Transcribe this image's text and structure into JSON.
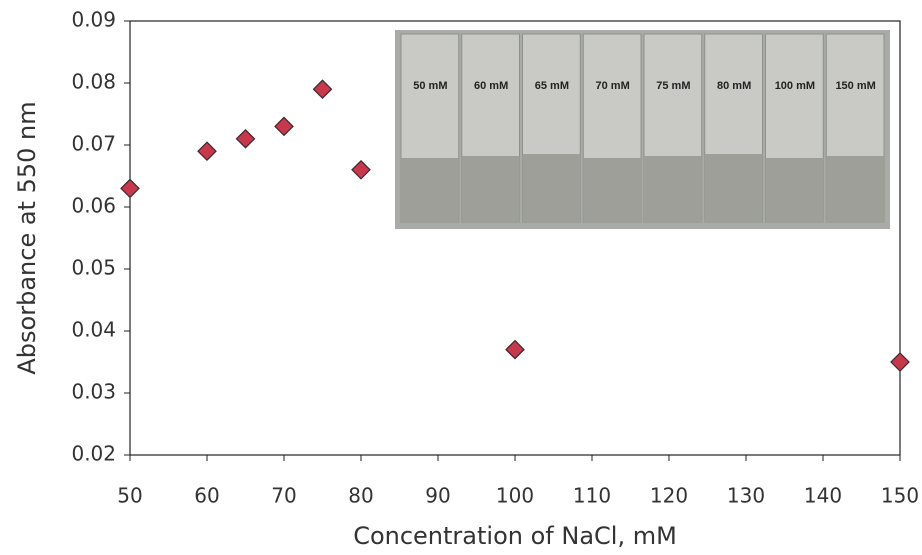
{
  "chart_data": {
    "type": "scatter",
    "x_label": "Concentration of NaCl, mM",
    "y_label": "Absorbance at 550 nm",
    "x": [
      50,
      60,
      65,
      70,
      75,
      80,
      100,
      150
    ],
    "series": [
      {
        "name": "Absorbance",
        "color": "#c8374a",
        "values": [
          0.063,
          0.069,
          0.071,
          0.073,
          0.079,
          0.066,
          0.037,
          0.035
        ]
      }
    ],
    "xlim": [
      50,
      150
    ],
    "xticks": [
      50,
      60,
      70,
      80,
      90,
      100,
      110,
      120,
      130,
      140,
      150
    ],
    "ylim": [
      0.02,
      0.09
    ],
    "yticks": [
      0.02,
      0.03,
      0.04,
      0.05,
      0.06,
      0.07,
      0.08,
      0.09
    ],
    "annotations": [
      "50 mM",
      "60 mM",
      "65 mM",
      "70 mM",
      "75 mM",
      "80 mM",
      "100 mM",
      "150 mM"
    ]
  }
}
